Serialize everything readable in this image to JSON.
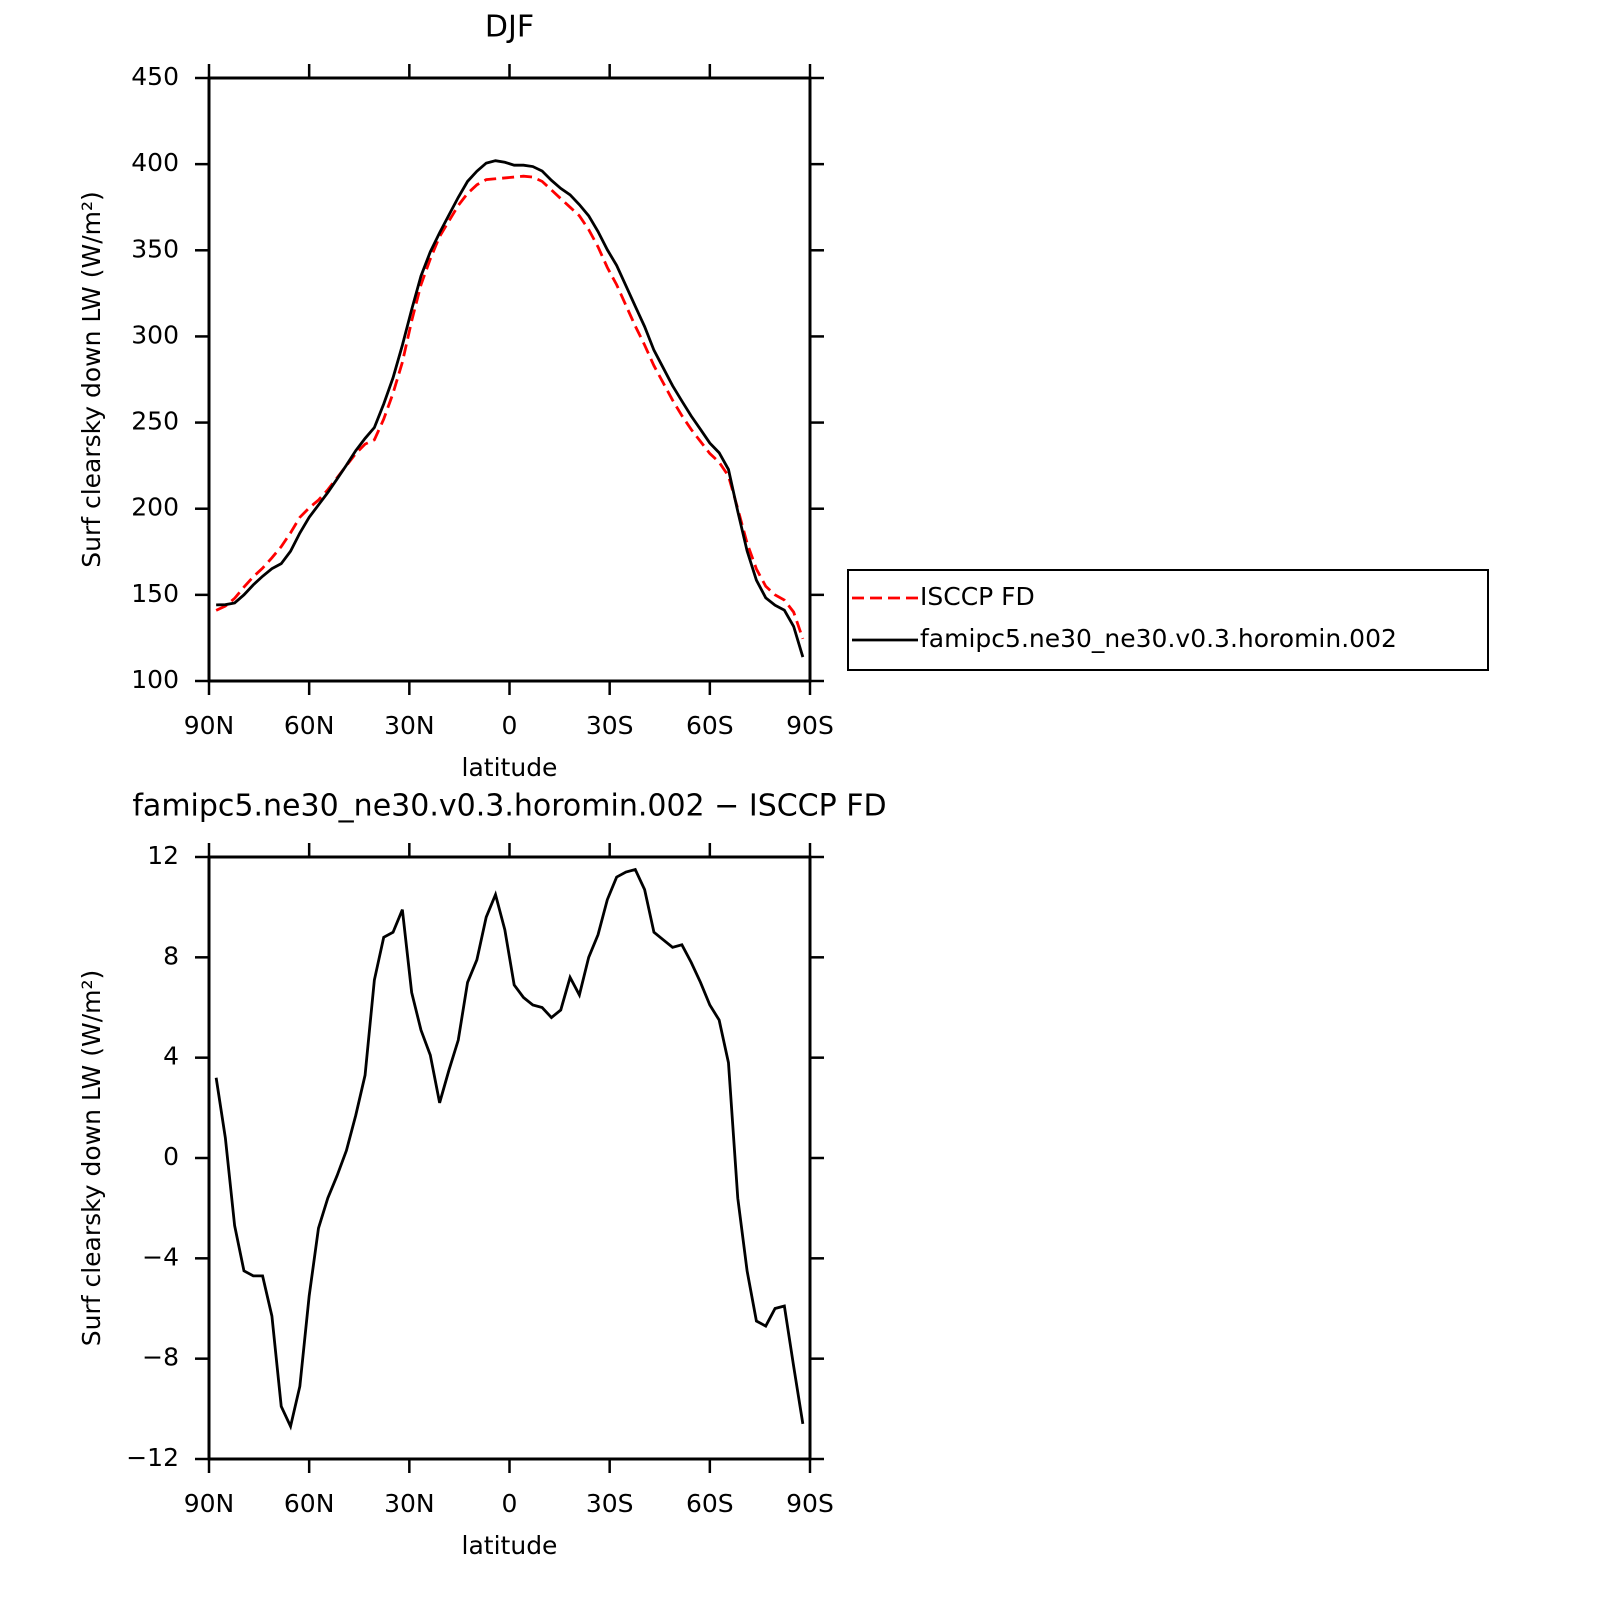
{
  "chart_data": [
    {
      "type": "line",
      "title": "DJF",
      "xlabel": "latitude",
      "ylabel": "Surf clearsky down LW (W/m²)",
      "xlim": [
        90,
        -90
      ],
      "xticks": [
        {
          "value": 90,
          "label": "90N"
        },
        {
          "value": 60,
          "label": "60N"
        },
        {
          "value": 30,
          "label": "30N"
        },
        0,
        {
          "value": -30,
          "label": "30S"
        },
        {
          "value": -60,
          "label": "60S"
        },
        {
          "value": -90,
          "label": "90S"
        }
      ],
      "ylim": [
        100,
        450
      ],
      "yticks": [
        100,
        150,
        200,
        250,
        300,
        350,
        400,
        450
      ],
      "legend": "right",
      "x": [
        87.86,
        85.1,
        82.32,
        79.53,
        76.74,
        73.95,
        71.16,
        68.37,
        65.58,
        62.79,
        60.0,
        57.21,
        54.42,
        51.63,
        48.84,
        46.05,
        43.26,
        40.47,
        37.67,
        34.88,
        32.09,
        29.3,
        26.51,
        23.72,
        20.93,
        18.14,
        15.35,
        12.56,
        9.77,
        6.98,
        4.19,
        1.4,
        -1.4,
        -4.19,
        -6.98,
        -9.77,
        -12.56,
        -15.35,
        -18.14,
        -20.93,
        -23.72,
        -26.51,
        -29.3,
        -32.09,
        -34.88,
        -37.67,
        -40.47,
        -43.26,
        -46.05,
        -48.84,
        -51.63,
        -54.42,
        -57.21,
        -60.0,
        -62.79,
        -65.58,
        -68.37,
        -71.16,
        -73.95,
        -76.74,
        -79.53,
        -82.32,
        -85.1,
        -87.86
      ],
      "series": [
        {
          "name": "ISCCP FD",
          "color": "#ff0000",
          "line_style": "dashed",
          "values": [
            141,
            143.5,
            148,
            154.5,
            160.5,
            165.5,
            171.5,
            178,
            186,
            195,
            200.5,
            205,
            211,
            218,
            225,
            232,
            237.5,
            240,
            252,
            267,
            285,
            309,
            330,
            345,
            358,
            367,
            376,
            383,
            388,
            391,
            391.5,
            392,
            392.5,
            393,
            392.5,
            390,
            385,
            380,
            375,
            370,
            362,
            352,
            340,
            330,
            318,
            306,
            295,
            283,
            273,
            263,
            254,
            246,
            239,
            232,
            227,
            219,
            200,
            180,
            165,
            155,
            150,
            147,
            140,
            124.5
          ]
        },
        {
          "name": "famipc5.ne30_ne30.v0.3.horomin.002",
          "color": "#000000",
          "line_style": "solid",
          "values": [
            144.2,
            144.3,
            145.3,
            150,
            155.8,
            160.8,
            165.2,
            168.1,
            175.3,
            185.9,
            195,
            202.2,
            209.4,
            217.3,
            225.3,
            233.7,
            240.8,
            247.1,
            260.8,
            276,
            294.9,
            315.6,
            335.1,
            349.1,
            360.2,
            370.5,
            380.7,
            390,
            395.9,
            400.6,
            402,
            401.1,
            399.4,
            399.4,
            398.6,
            396,
            390.6,
            385.9,
            382.2,
            376.5,
            370,
            360.9,
            350.3,
            341.2,
            329.4,
            317.5,
            305.7,
            292,
            281.7,
            271.4,
            262.5,
            253.8,
            246,
            238.1,
            232.5,
            222.8,
            198.4,
            175.5,
            158.5,
            148.3,
            144,
            141.1,
            131.7,
            113.9
          ]
        }
      ]
    },
    {
      "type": "line",
      "title": "famipc5.ne30_ne30.v0.3.horomin.002 − ISCCP FD",
      "xlabel": "latitude",
      "ylabel": "Surf clearsky down LW (W/m²)",
      "xlim": [
        90,
        -90
      ],
      "xticks": [
        {
          "value": 90,
          "label": "90N"
        },
        {
          "value": 60,
          "label": "60N"
        },
        {
          "value": 30,
          "label": "30N"
        },
        0,
        {
          "value": -30,
          "label": "30S"
        },
        {
          "value": -60,
          "label": "60S"
        },
        {
          "value": -90,
          "label": "90S"
        }
      ],
      "ylim": [
        -12,
        12
      ],
      "yticks": [
        {
          "value": -12,
          "label": "−12"
        },
        {
          "value": -8,
          "label": "−8"
        },
        {
          "value": -4,
          "label": "−4"
        },
        0,
        4,
        8,
        12
      ],
      "x": [
        87.86,
        85.1,
        82.32,
        79.53,
        76.74,
        73.95,
        71.16,
        68.37,
        65.58,
        62.79,
        60.0,
        57.21,
        54.42,
        51.63,
        48.84,
        46.05,
        43.26,
        40.47,
        37.67,
        34.88,
        32.09,
        29.3,
        26.51,
        23.72,
        20.93,
        18.14,
        15.35,
        12.56,
        9.77,
        6.98,
        4.19,
        1.4,
        -1.4,
        -4.19,
        -6.98,
        -9.77,
        -12.56,
        -15.35,
        -18.14,
        -20.93,
        -23.72,
        -26.51,
        -29.3,
        -32.09,
        -34.88,
        -37.67,
        -40.47,
        -43.26,
        -46.05,
        -48.84,
        -51.63,
        -54.42,
        -57.21,
        -60.0,
        -62.79,
        -65.58,
        -68.37,
        -71.16,
        -73.95,
        -76.74,
        -79.53,
        -82.32,
        -85.1,
        -87.86
      ],
      "series": [
        {
          "color": "#000000",
          "line_style": "solid",
          "values": [
            3.2,
            0.8,
            -2.7,
            -4.5,
            -4.7,
            -4.7,
            -6.3,
            -9.9,
            -10.7,
            -9.1,
            -5.5,
            -2.8,
            -1.6,
            -0.7,
            0.3,
            1.7,
            3.3,
            7.1,
            8.8,
            9.0,
            9.9,
            6.6,
            5.1,
            4.1,
            2.2,
            3.5,
            4.7,
            7.0,
            7.9,
            9.6,
            10.5,
            9.1,
            6.9,
            6.4,
            6.1,
            6.0,
            5.6,
            5.9,
            7.2,
            6.5,
            8.0,
            8.9,
            10.3,
            11.2,
            11.4,
            11.5,
            10.7,
            9.0,
            8.7,
            8.4,
            8.5,
            7.8,
            7.0,
            6.1,
            5.5,
            3.8,
            -1.6,
            -4.5,
            -6.5,
            -6.7,
            -6.0,
            -5.9,
            -8.3,
            -10.6
          ]
        }
      ]
    }
  ]
}
